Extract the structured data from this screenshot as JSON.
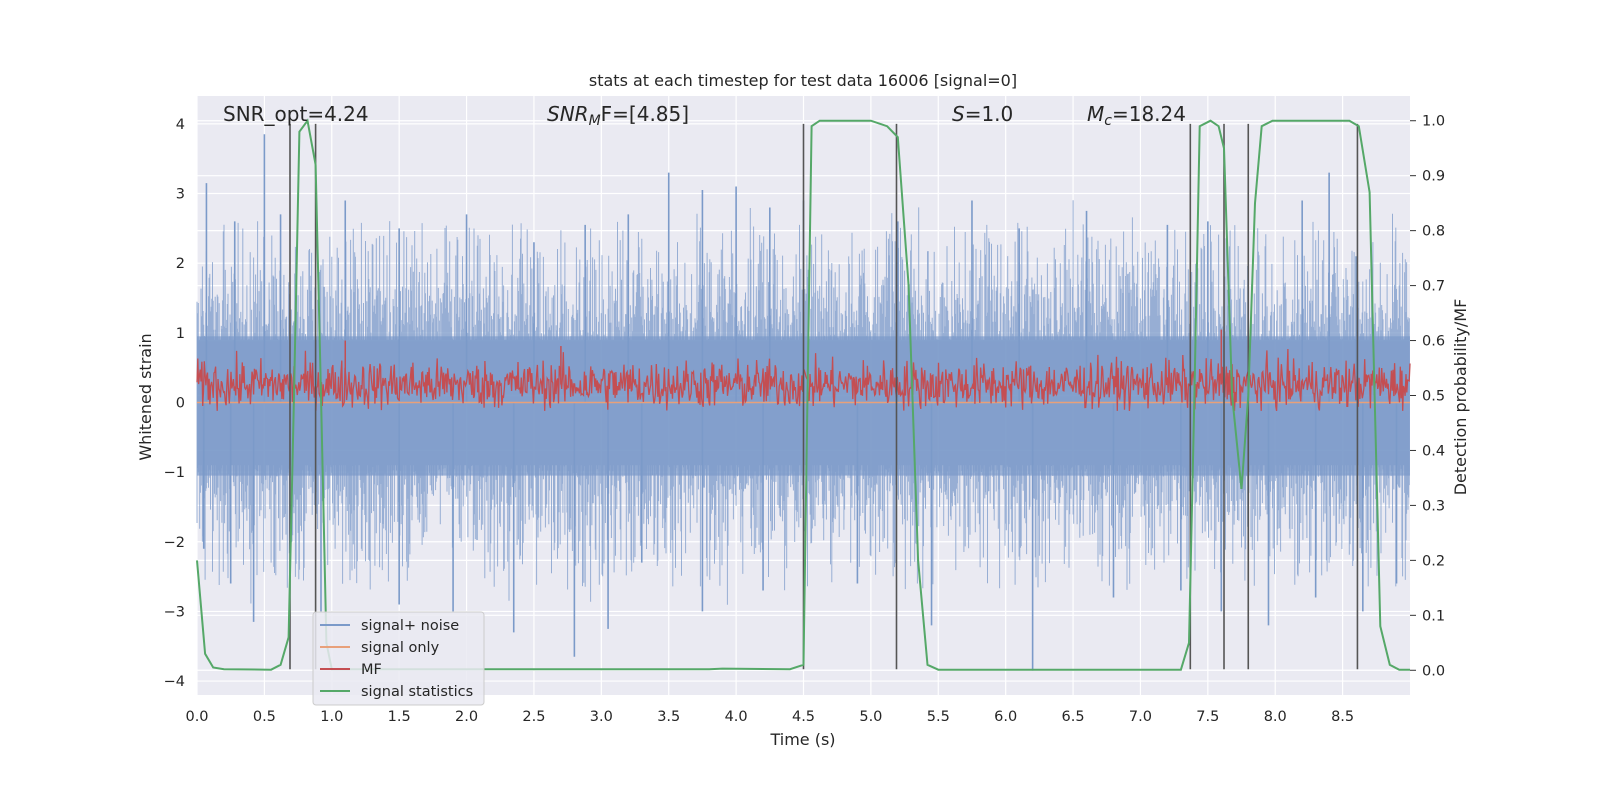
{
  "chart_data": {
    "type": "line",
    "title": "stats at each timestep for test data 16006 [signal=0]",
    "xlabel": "Time (s)",
    "ylabel": "Whitened strain",
    "y2label": "Detection probability/MF",
    "xlim": [
      0.0,
      9.0
    ],
    "ylim": [
      -4.2,
      4.4
    ],
    "y2lim": [
      -0.045,
      1.045
    ],
    "xticks": [
      "0.0",
      "0.5",
      "1.0",
      "1.5",
      "2.0",
      "2.5",
      "3.0",
      "3.5",
      "4.0",
      "4.5",
      "5.0",
      "5.5",
      "6.0",
      "6.5",
      "7.0",
      "7.5",
      "8.0",
      "8.5"
    ],
    "xtick_values": [
      0.0,
      0.5,
      1.0,
      1.5,
      2.0,
      2.5,
      3.0,
      3.5,
      4.0,
      4.5,
      5.0,
      5.5,
      6.0,
      6.5,
      7.0,
      7.5,
      8.0,
      8.5
    ],
    "yticks": [
      "4",
      "3",
      "2",
      "1",
      "0",
      "−1",
      "−2",
      "−3",
      "−4"
    ],
    "ytick_values": [
      4,
      3,
      2,
      1,
      0,
      -1,
      -2,
      -3,
      -4
    ],
    "y2ticks": [
      "1.0",
      "0.9",
      "0.8",
      "0.7",
      "0.6",
      "0.5",
      "0.4",
      "0.3",
      "0.2",
      "0.1",
      "0.0"
    ],
    "y2tick_values": [
      1.0,
      0.9,
      0.8,
      0.7,
      0.6,
      0.5,
      0.4,
      0.3,
      0.2,
      0.1,
      0.0
    ],
    "annotations": {
      "snr_opt": "SNR_opt=4.24",
      "snr_mf_base": "SNR",
      "snr_mf_sub": "M",
      "snr_mf_rest": "F=[4.85]",
      "s_italic": "S",
      "s_rest": "=1.0",
      "mc_base": "M",
      "mc_sub": "c",
      "mc_rest": "=18.24"
    },
    "legend": {
      "position": "lower-left",
      "entries": [
        "signal+ noise",
        "signal only",
        "MF",
        "signal statistics"
      ]
    },
    "colors": {
      "background": "#eaeaf2",
      "grid": "#ffffff",
      "noise": "#7b9ac9",
      "signal_only": "#e8a07a",
      "mf": "#c44e52",
      "stats": "#55a868",
      "vline": "#555555"
    },
    "series": [
      {
        "name": "signal+ noise",
        "description": "dense noisy whitened strain trace, amplitude roughly within ±2.5",
        "peak_points": [
          [
            0.07,
            3.15
          ],
          [
            0.28,
            2.6
          ],
          [
            0.5,
            3.85
          ],
          [
            0.62,
            2.7
          ],
          [
            1.1,
            2.9
          ],
          [
            1.5,
            2.5
          ],
          [
            2.0,
            2.7
          ],
          [
            2.5,
            2.3
          ],
          [
            2.88,
            2.55
          ],
          [
            3.2,
            2.7
          ],
          [
            3.5,
            3.3
          ],
          [
            3.75,
            3.05
          ],
          [
            4.0,
            3.1
          ],
          [
            4.25,
            2.8
          ],
          [
            4.5,
            2.9
          ],
          [
            5.2,
            2.6
          ],
          [
            5.75,
            2.9
          ],
          [
            6.1,
            2.5
          ],
          [
            6.6,
            2.75
          ],
          [
            7.2,
            2.55
          ],
          [
            7.5,
            2.6
          ],
          [
            8.2,
            2.9
          ],
          [
            8.4,
            3.3
          ],
          [
            8.6,
            2.1
          ]
        ],
        "trough_points": [
          [
            0.05,
            -2.1
          ],
          [
            0.25,
            -2.6
          ],
          [
            0.42,
            -3.15
          ],
          [
            0.92,
            -3.0
          ],
          [
            1.5,
            -2.9
          ],
          [
            1.9,
            -3.0
          ],
          [
            2.35,
            -3.3
          ],
          [
            2.8,
            -3.65
          ],
          [
            3.05,
            -3.25
          ],
          [
            3.3,
            -2.3
          ],
          [
            3.75,
            -3.0
          ],
          [
            4.2,
            -2.7
          ],
          [
            4.9,
            -2.6
          ],
          [
            5.45,
            -3.2
          ],
          [
            6.2,
            -3.85
          ],
          [
            6.8,
            -2.8
          ],
          [
            7.3,
            -2.7
          ],
          [
            7.6,
            -3.0
          ],
          [
            7.95,
            -3.2
          ],
          [
            8.3,
            -2.8
          ],
          [
            8.65,
            -3.0
          ],
          [
            8.9,
            -2.6
          ]
        ]
      },
      {
        "name": "signal only",
        "description": "flat at zero (signal=0)",
        "points": [
          [
            0.0,
            0.0
          ],
          [
            9.0,
            0.0
          ]
        ]
      },
      {
        "name": "MF",
        "axis": "right",
        "description": "noisy matched filter output around 0.52 detection-probability units",
        "mean": 0.52,
        "spread": 0.04,
        "peaks": [
          [
            7.6,
            0.62
          ],
          [
            1.1,
            0.6
          ],
          [
            2.7,
            0.59
          ]
        ]
      },
      {
        "name": "signal statistics",
        "axis": "right",
        "points": [
          [
            0.0,
            0.2
          ],
          [
            0.06,
            0.03
          ],
          [
            0.12,
            0.005
          ],
          [
            0.2,
            0.002
          ],
          [
            0.55,
            0.001
          ],
          [
            0.62,
            0.01
          ],
          [
            0.68,
            0.06
          ],
          [
            0.72,
            0.5
          ],
          [
            0.76,
            0.98
          ],
          [
            0.82,
            1.0
          ],
          [
            0.88,
            0.92
          ],
          [
            0.92,
            0.5
          ],
          [
            0.96,
            0.05
          ],
          [
            1.0,
            0.002
          ],
          [
            3.8,
            0.002
          ],
          [
            3.9,
            0.003
          ],
          [
            4.4,
            0.002
          ],
          [
            4.5,
            0.01
          ],
          [
            4.53,
            0.5
          ],
          [
            4.56,
            0.99
          ],
          [
            4.62,
            1.0
          ],
          [
            5.0,
            1.0
          ],
          [
            5.12,
            0.99
          ],
          [
            5.2,
            0.97
          ],
          [
            5.28,
            0.7
          ],
          [
            5.35,
            0.2
          ],
          [
            5.42,
            0.01
          ],
          [
            5.5,
            0.001
          ],
          [
            7.3,
            0.001
          ],
          [
            7.36,
            0.05
          ],
          [
            7.4,
            0.5
          ],
          [
            7.44,
            0.99
          ],
          [
            7.52,
            1.0
          ],
          [
            7.58,
            0.99
          ],
          [
            7.62,
            0.95
          ],
          [
            7.68,
            0.5
          ],
          [
            7.75,
            0.33
          ],
          [
            7.8,
            0.5
          ],
          [
            7.85,
            0.85
          ],
          [
            7.9,
            0.99
          ],
          [
            7.98,
            1.0
          ],
          [
            8.55,
            1.0
          ],
          [
            8.62,
            0.99
          ],
          [
            8.7,
            0.87
          ],
          [
            8.78,
            0.08
          ],
          [
            8.85,
            0.01
          ],
          [
            8.92,
            0.001
          ],
          [
            9.0,
            0.001
          ]
        ]
      }
    ],
    "vlines": [
      0.69,
      0.88,
      4.5,
      5.19,
      7.37,
      7.62,
      7.8,
      8.61
    ],
    "vline_top_value": 4.0,
    "vline_bottom_value": -3.83
  }
}
